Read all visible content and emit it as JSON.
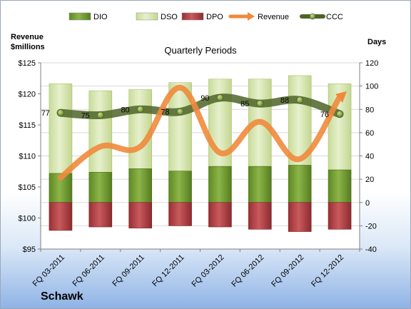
{
  "chart_data": {
    "type": "bar",
    "title": "Quarterly Periods",
    "company": "Schawk",
    "left_axis": {
      "label_line1": "Revenue",
      "label_line2": "$millions",
      "min": 95,
      "max": 125,
      "step": 5,
      "prefix": "$"
    },
    "right_axis": {
      "label": "Days",
      "min": -40,
      "max": 120,
      "step": 20
    },
    "categories": [
      "FQ 03-2011",
      "FQ 06-2011",
      "FQ 09-2011",
      "FQ 12-2011",
      "FQ 03-2012",
      "FQ 06-2012",
      "FQ 09-2012",
      "FQ 12-2012"
    ],
    "legend": [
      "DIO",
      "DSO",
      "DPO",
      "Revenue",
      "CCC"
    ],
    "legend_position": "top",
    "series": [
      {
        "name": "DIO",
        "axis": "right",
        "values": [
          25,
          26,
          29,
          27,
          31,
          31,
          32,
          28
        ],
        "color": "#6e9a2a"
      },
      {
        "name": "DSO",
        "axis": "right",
        "values": [
          77,
          70,
          68,
          76,
          75,
          75,
          77,
          74
        ],
        "color": "#d6e6b0"
      },
      {
        "name": "DPO",
        "axis": "right",
        "values": [
          -24,
          -21,
          -22,
          -20,
          -21,
          -23,
          -25,
          -23
        ],
        "color": "#b03a3e"
      },
      {
        "name": "Revenue",
        "axis": "left",
        "values": [
          106.5,
          111.5,
          111.5,
          121,
          110.5,
          115.5,
          109.5,
          119.5
        ],
        "color": "#f0893c"
      },
      {
        "name": "CCC",
        "axis": "right",
        "values": [
          77,
          75,
          80,
          78,
          90,
          85,
          88,
          76
        ],
        "color": "#556b2f"
      }
    ],
    "data_labels": [
      "77",
      "75",
      "80",
      "78",
      "90",
      "85",
      "88",
      "76"
    ]
  }
}
